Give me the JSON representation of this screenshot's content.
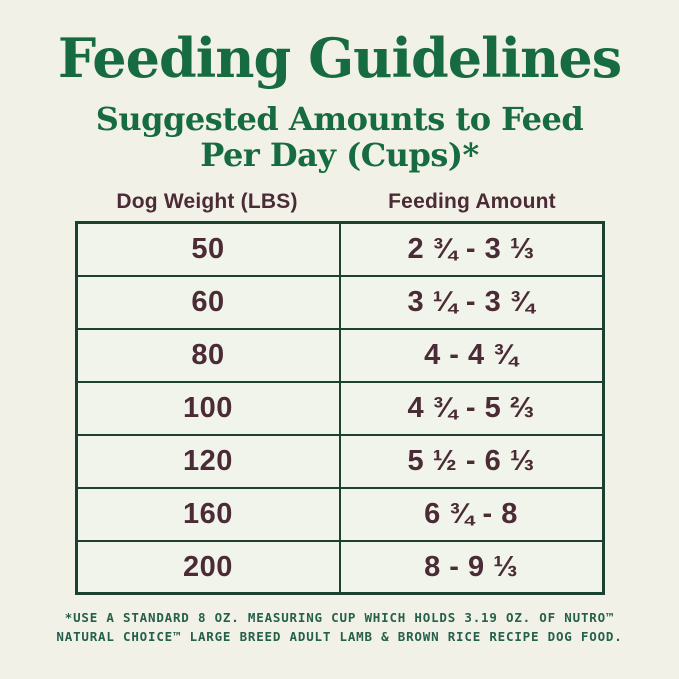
{
  "page": {
    "title": "Feeding Guidelines",
    "subtitle_line1": "Suggested Amounts to Feed",
    "subtitle_line2": "Per Day (Cups)*"
  },
  "table": {
    "columns": [
      "Dog Weight (LBS)",
      "Feeding Amount"
    ],
    "rows": [
      {
        "weight": "50",
        "amount": "2 ¾ - 3 ⅓"
      },
      {
        "weight": "60",
        "amount": "3 ¼ - 3 ¾"
      },
      {
        "weight": "80",
        "amount": "4 - 4 ¾"
      },
      {
        "weight": "100",
        "amount": "4 ¾ - 5 ⅔"
      },
      {
        "weight": "120",
        "amount": "5 ½ - 6 ⅓"
      },
      {
        "weight": "160",
        "amount": "6 ¾ - 8"
      },
      {
        "weight": "200",
        "amount": "8 - 9 ⅓"
      }
    ]
  },
  "footnote": {
    "line1": "*USE A STANDARD 8 OZ. MEASURING CUP WHICH HOLDS 3.19 OZ. OF NUTRO™",
    "line2": "NATURAL CHOICE™ LARGE BREED ADULT LAMB & BROWN RICE RECIPE DOG FOOD."
  },
  "colors": {
    "background": "#F2F1E8",
    "title_green": "#176B40",
    "text_maroon": "#4B2B35",
    "border_green": "#1B4130",
    "footnote_green": "#24604A",
    "cell_background": "#F1F4EB"
  }
}
